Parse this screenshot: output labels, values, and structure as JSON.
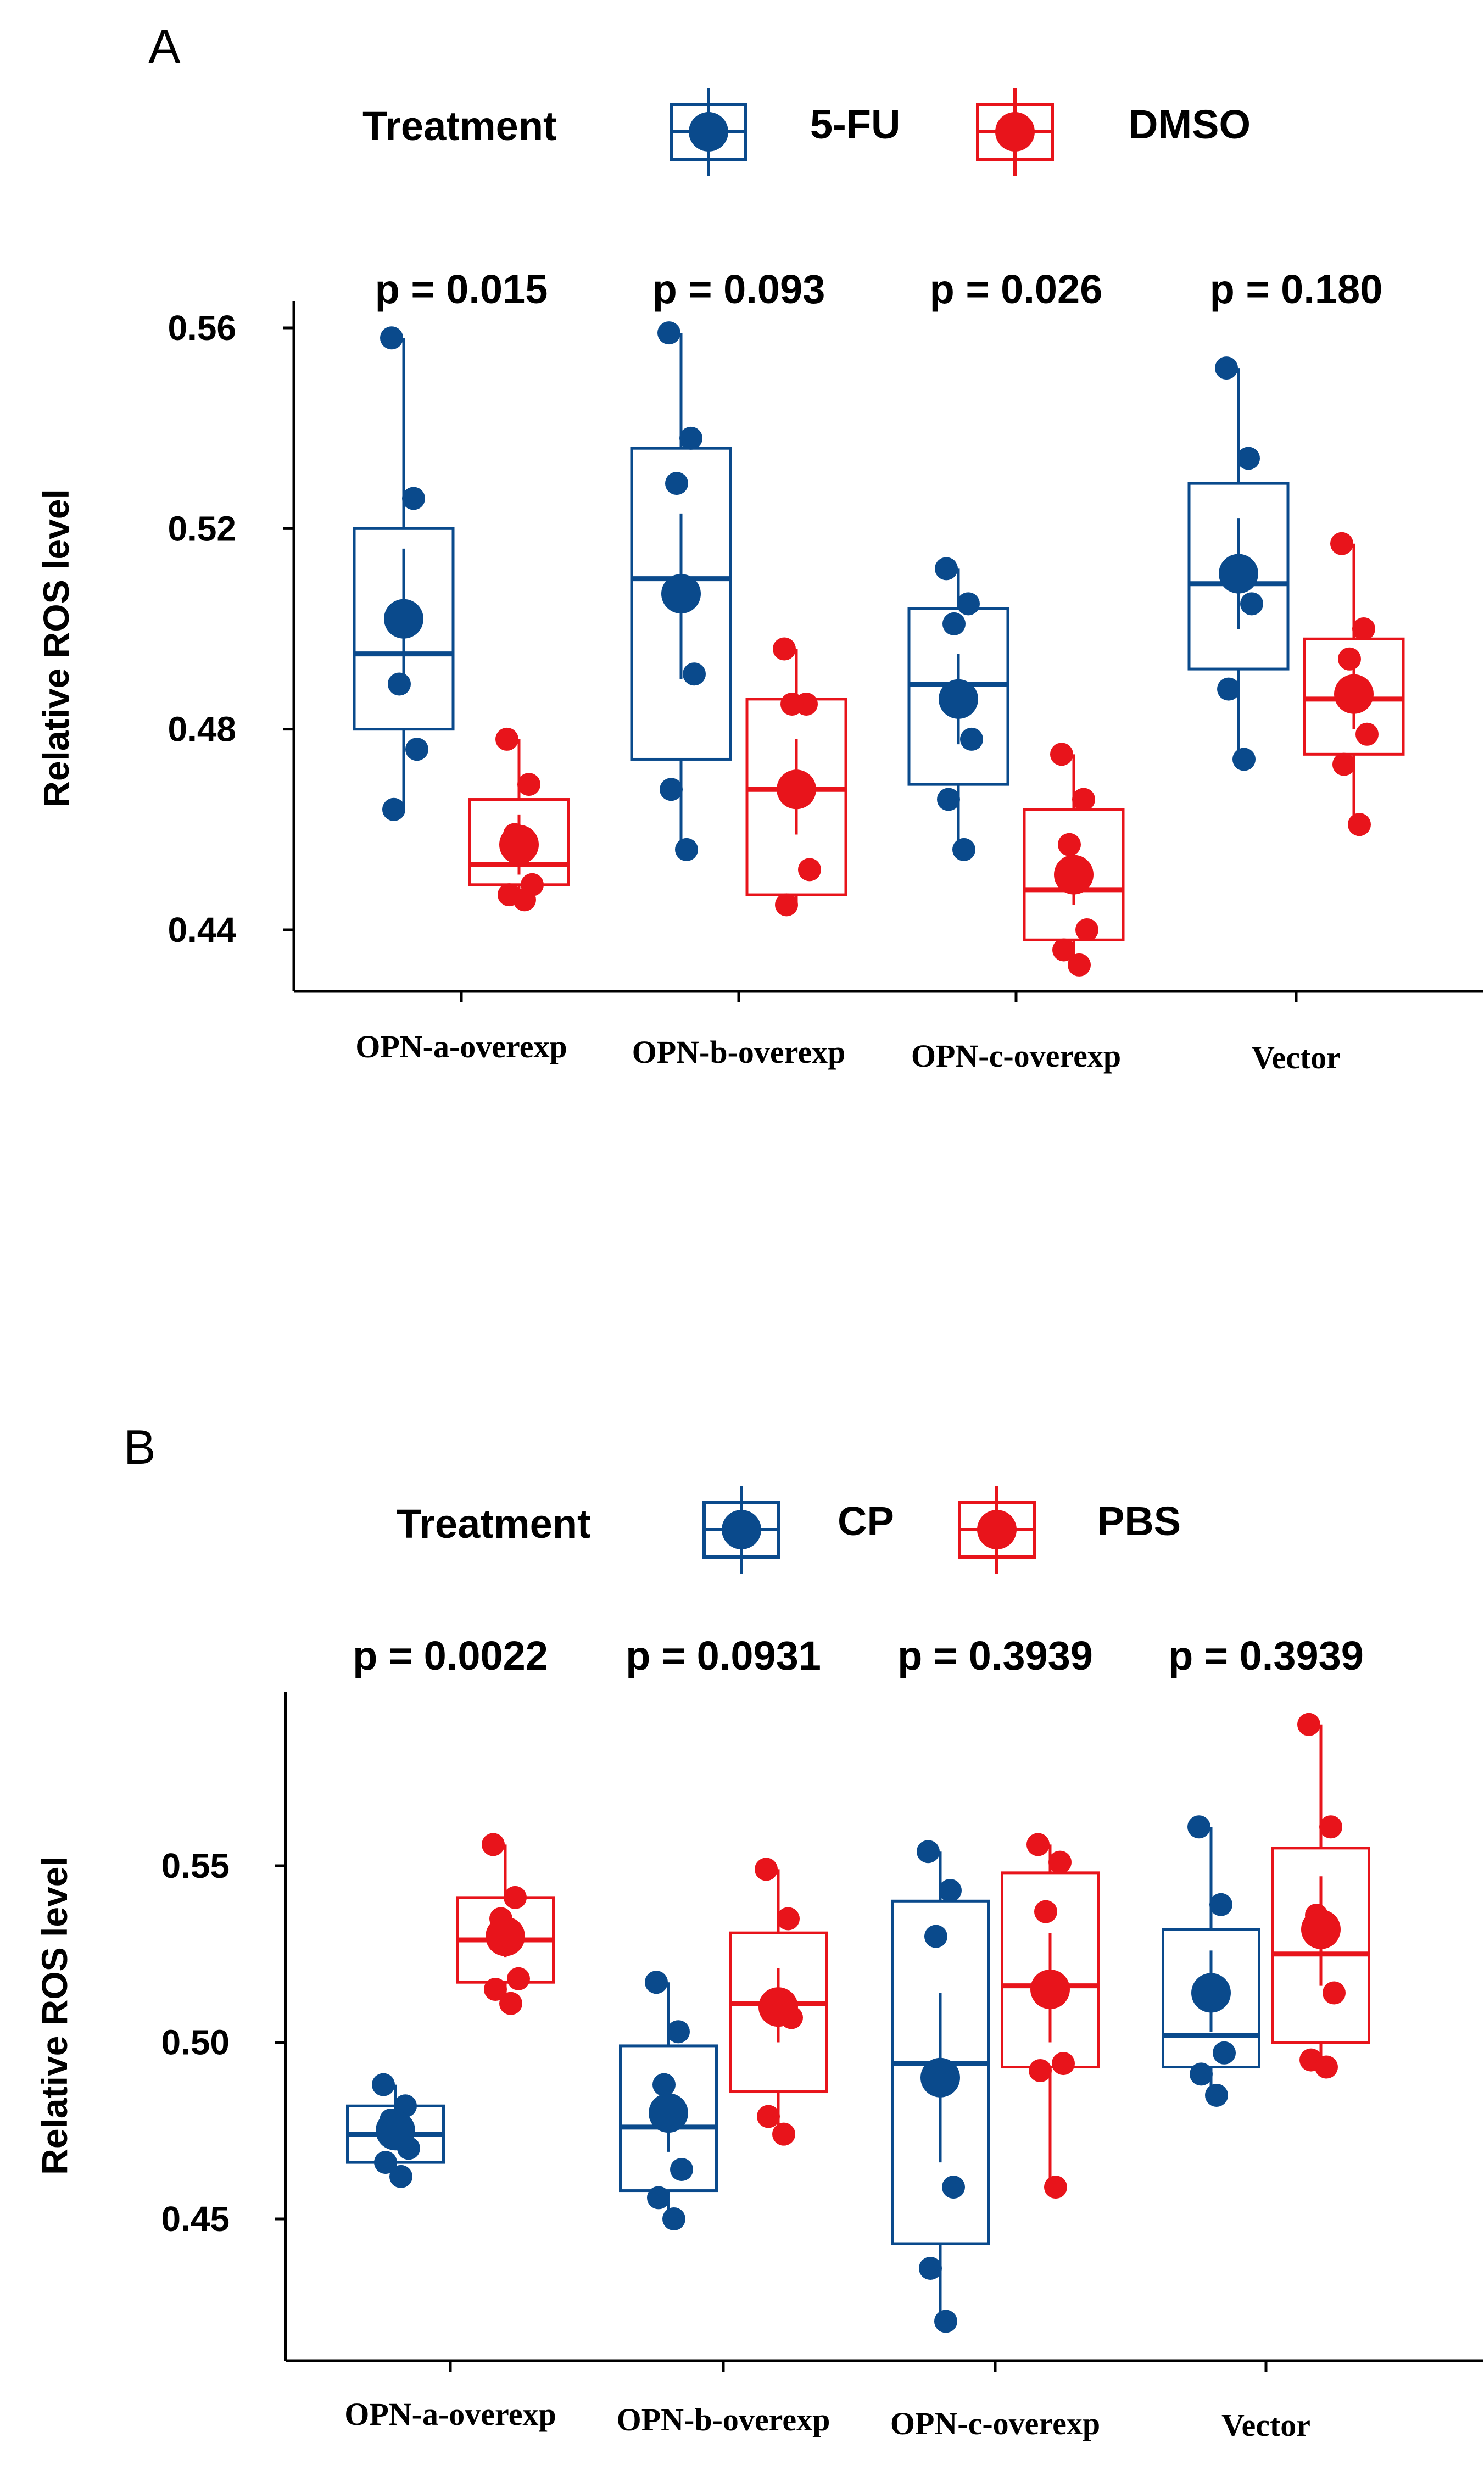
{
  "chart_data": [
    {
      "panel": "A",
      "type": "box",
      "legend": {
        "title": "Treatment",
        "entries": [
          {
            "name": "5-FU",
            "color": "#0a4a8c"
          },
          {
            "name": "DMSO",
            "color": "#e8141b"
          }
        ]
      },
      "ylabel": "Relative ROS level",
      "ylim": [
        0.428,
        0.57
      ],
      "yticks": [
        0.44,
        0.48,
        0.52,
        0.56
      ],
      "ytick_labels": [
        "0.44",
        "0.48",
        "0.52",
        "0.56"
      ],
      "categories": [
        "OPN-a-overexp",
        "OPN-b-overexp",
        "OPN-c-overexp",
        "Vector"
      ],
      "pvalues": [
        "p = 0.015",
        "p = 0.093",
        "p = 0.026",
        "p = 0.180"
      ],
      "series": [
        {
          "name": "5-FU",
          "color": "#0a4a8c",
          "groups": [
            {
              "min": 0.464,
              "q1": 0.48,
              "median": 0.495,
              "q3": 0.52,
              "max": 0.558,
              "mean": 0.502,
              "ci": [
                0.49,
                0.516
              ],
              "points": [
                0.558,
                0.526,
                0.489,
                0.476,
                0.464
              ]
            },
            {
              "min": 0.456,
              "q1": 0.474,
              "median": 0.51,
              "q3": 0.536,
              "max": 0.559,
              "mean": 0.507,
              "ci": [
                0.49,
                0.523
              ],
              "points": [
                0.559,
                0.538,
                0.529,
                0.491,
                0.468,
                0.456
              ]
            },
            {
              "min": 0.456,
              "q1": 0.469,
              "median": 0.489,
              "q3": 0.504,
              "max": 0.512,
              "mean": 0.486,
              "ci": [
                0.477,
                0.495
              ],
              "points": [
                0.512,
                0.505,
                0.501,
                0.478,
                0.466,
                0.456
              ]
            },
            {
              "min": 0.474,
              "q1": 0.492,
              "median": 0.509,
              "q3": 0.529,
              "max": 0.552,
              "mean": 0.511,
              "ci": [
                0.5,
                0.522
              ],
              "points": [
                0.552,
                0.534,
                0.512,
                0.505,
                0.488,
                0.474
              ]
            }
          ]
        },
        {
          "name": "DMSO",
          "color": "#e8141b",
          "groups": [
            {
              "min": 0.446,
              "q1": 0.449,
              "median": 0.453,
              "q3": 0.466,
              "max": 0.478,
              "mean": 0.457,
              "ci": [
                0.451,
                0.463
              ],
              "points": [
                0.478,
                0.469,
                0.459,
                0.449,
                0.447,
                0.446
              ]
            },
            {
              "min": 0.445,
              "q1": 0.447,
              "median": 0.468,
              "q3": 0.486,
              "max": 0.496,
              "mean": 0.468,
              "ci": [
                0.459,
                0.478
              ],
              "points": [
                0.496,
                0.485,
                0.485,
                0.452,
                0.445
              ]
            },
            {
              "min": 0.433,
              "q1": 0.438,
              "median": 0.448,
              "q3": 0.464,
              "max": 0.475,
              "mean": 0.451,
              "ci": [
                0.445,
                0.458
              ],
              "points": [
                0.475,
                0.466,
                0.457,
                0.44,
                0.436,
                0.433
              ]
            },
            {
              "min": 0.461,
              "q1": 0.475,
              "median": 0.486,
              "q3": 0.498,
              "max": 0.517,
              "mean": 0.487,
              "ci": [
                0.48,
                0.494
              ],
              "points": [
                0.517,
                0.5,
                0.494,
                0.479,
                0.473,
                0.461
              ]
            }
          ]
        }
      ]
    },
    {
      "panel": "B",
      "type": "box",
      "legend": {
        "title": "Treatment",
        "entries": [
          {
            "name": "CP",
            "color": "#0a4a8c"
          },
          {
            "name": "PBS",
            "color": "#e8141b"
          }
        ]
      },
      "ylabel": "Relative ROS level",
      "ylim": [
        0.413,
        0.602
      ],
      "yticks": [
        0.45,
        0.5,
        0.55
      ],
      "ytick_labels": [
        "0.45",
        "0.50",
        "0.55"
      ],
      "categories": [
        "OPN-a-overexp",
        "OPN-b-overexp",
        "OPN-c-overexp",
        "Vector"
      ],
      "pvalues": [
        "p = 0.0022",
        "p = 0.0931",
        "p = 0.3939",
        "p = 0.3939"
      ],
      "series": [
        {
          "name": "CP",
          "color": "#0a4a8c",
          "groups": [
            {
              "min": 0.462,
              "q1": 0.466,
              "median": 0.474,
              "q3": 0.482,
              "max": 0.488,
              "mean": 0.475,
              "ci": [
                0.47,
                0.48
              ],
              "points": [
                0.488,
                0.482,
                0.478,
                0.47,
                0.466,
                0.462
              ]
            },
            {
              "min": 0.45,
              "q1": 0.458,
              "median": 0.476,
              "q3": 0.499,
              "max": 0.517,
              "mean": 0.48,
              "ci": [
                0.469,
                0.491
              ],
              "points": [
                0.517,
                0.503,
                0.488,
                0.464,
                0.456,
                0.45
              ]
            },
            {
              "min": 0.421,
              "q1": 0.443,
              "median": 0.494,
              "q3": 0.54,
              "max": 0.554,
              "mean": 0.49,
              "ci": [
                0.466,
                0.514
              ],
              "points": [
                0.554,
                0.543,
                0.53,
                0.459,
                0.436,
                0.421
              ]
            },
            {
              "min": 0.485,
              "q1": 0.493,
              "median": 0.502,
              "q3": 0.532,
              "max": 0.561,
              "mean": 0.514,
              "ci": [
                0.503,
                0.526
              ],
              "points": [
                0.561,
                0.539,
                0.515,
                0.497,
                0.491,
                0.485
              ]
            }
          ]
        },
        {
          "name": "PBS",
          "color": "#e8141b",
          "groups": [
            {
              "min": 0.511,
              "q1": 0.517,
              "median": 0.529,
              "q3": 0.541,
              "max": 0.556,
              "mean": 0.53,
              "ci": [
                0.524,
                0.537
              ],
              "points": [
                0.556,
                0.541,
                0.535,
                0.518,
                0.515,
                0.511
              ]
            },
            {
              "min": 0.474,
              "q1": 0.486,
              "median": 0.511,
              "q3": 0.531,
              "max": 0.549,
              "mean": 0.51,
              "ci": [
                0.5,
                0.521
              ],
              "points": [
                0.549,
                0.535,
                0.512,
                0.507,
                0.479,
                0.474
              ]
            },
            {
              "min": 0.459,
              "q1": 0.493,
              "median": 0.516,
              "q3": 0.548,
              "max": 0.556,
              "mean": 0.515,
              "ci": [
                0.5,
                0.531
              ],
              "points": [
                0.556,
                0.551,
                0.537,
                0.494,
                0.492,
                0.459
              ]
            },
            {
              "min": 0.493,
              "q1": 0.5,
              "median": 0.525,
              "q3": 0.555,
              "max": 0.59,
              "mean": 0.532,
              "ci": [
                0.516,
                0.547
              ],
              "points": [
                0.59,
                0.561,
                0.536,
                0.514,
                0.495,
                0.493
              ]
            }
          ]
        }
      ]
    }
  ]
}
